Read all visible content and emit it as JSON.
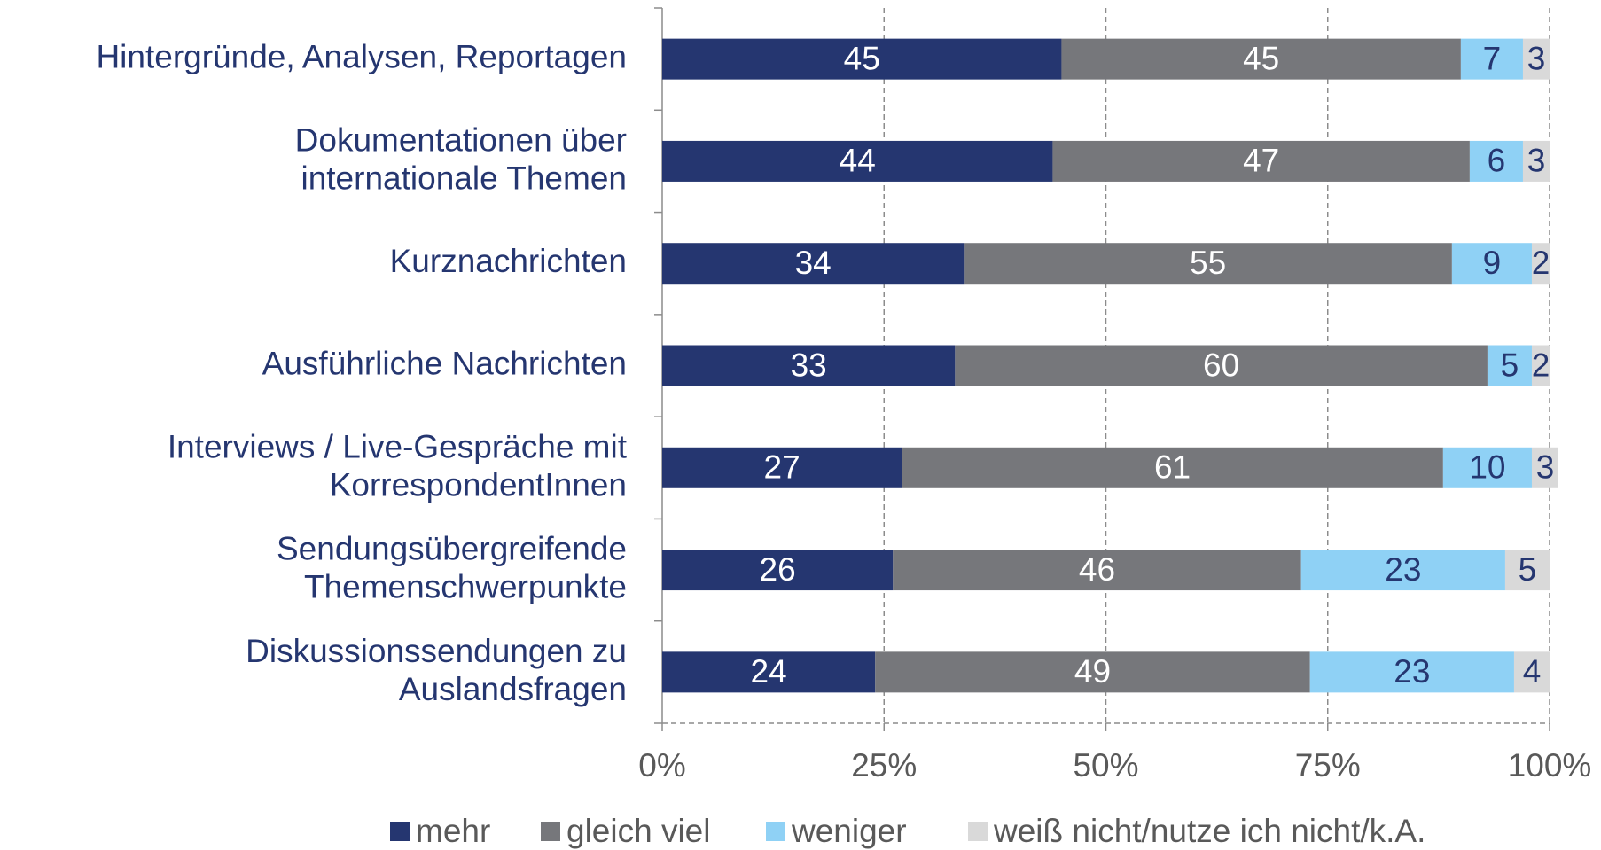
{
  "chart_data": {
    "type": "bar",
    "orientation": "horizontal",
    "stacked": true,
    "categories": [
      "Hintergründe, Analysen, Reportagen",
      "Dokumentationen über\ninternationale Themen",
      "Kurznachrichten",
      "Ausführliche Nachrichten",
      "Interviews / Live-Gespräche mit\nKorrespondentInnen",
      "Sendungsübergreifende\nThemenschwerpunkte",
      "Diskussionssendungen zu\nAuslandsfragen"
    ],
    "series": [
      {
        "name": "mehr",
        "color": "#253670",
        "label_color": "#ffffff",
        "values": [
          45,
          44,
          34,
          33,
          27,
          26,
          24
        ]
      },
      {
        "name": "gleich viel",
        "color": "#76777b",
        "label_color": "#ffffff",
        "values": [
          45,
          47,
          55,
          60,
          61,
          46,
          49
        ]
      },
      {
        "name": "weniger",
        "color": "#8fd1f5",
        "label_color": "#253670",
        "values": [
          7,
          6,
          9,
          5,
          10,
          23,
          23
        ]
      },
      {
        "name": "weiß nicht/nutze ich nicht/k.A.",
        "color": "#d9d9d9",
        "label_color": "#253670",
        "values": [
          3,
          3,
          2,
          2,
          3,
          5,
          4
        ]
      }
    ],
    "xlim": [
      0,
      100
    ],
    "xticks": [
      {
        "value": 0,
        "label": "0%"
      },
      {
        "value": 25,
        "label": "25%"
      },
      {
        "value": 50,
        "label": "50%"
      },
      {
        "value": 75,
        "label": "75%"
      },
      {
        "value": 100,
        "label": "100%"
      }
    ],
    "grid": true,
    "legend": "bottom"
  }
}
